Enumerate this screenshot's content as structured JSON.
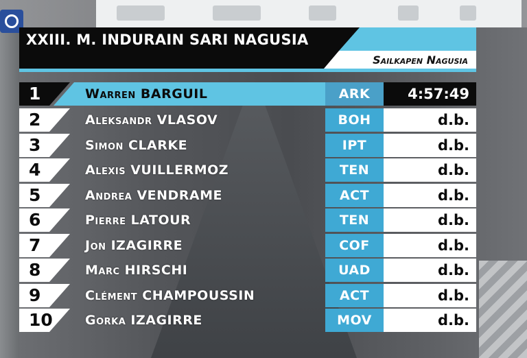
{
  "header": {
    "race_title": "XXIII. M. INDURAIN SARI NAGUSIA",
    "classification": "Sailkapen Nagusia"
  },
  "colors": {
    "accent": "#5fc4e3",
    "team_cell": "#3fa9d4",
    "dark": "#0b0b0b",
    "light": "#ffffff"
  },
  "results": [
    {
      "pos": "1",
      "name": "Warren BARGUIL",
      "team": "ARK",
      "time": "4:57:49"
    },
    {
      "pos": "2",
      "name": "Aleksandr VLASOV",
      "team": "BOH",
      "time": "d.b."
    },
    {
      "pos": "3",
      "name": "Simon CLARKE",
      "team": "IPT",
      "time": "d.b."
    },
    {
      "pos": "4",
      "name": "Alexis VUILLERMOZ",
      "team": "TEN",
      "time": "d.b."
    },
    {
      "pos": "5",
      "name": "Andrea VENDRAME",
      "team": "ACT",
      "time": "d.b."
    },
    {
      "pos": "6",
      "name": "Pierre LATOUR",
      "team": "TEN",
      "time": "d.b."
    },
    {
      "pos": "7",
      "name": "Jon IZAGIRRE",
      "team": "COF",
      "time": "d.b."
    },
    {
      "pos": "8",
      "name": "Marc HIRSCHI",
      "team": "UAD",
      "time": "d.b."
    },
    {
      "pos": "9",
      "name": "Clément CHAMPOUSSIN",
      "team": "ACT",
      "time": "d.b."
    },
    {
      "pos": "10",
      "name": "Gorka IZAGIRRE",
      "team": "MOV",
      "time": "d.b."
    }
  ]
}
